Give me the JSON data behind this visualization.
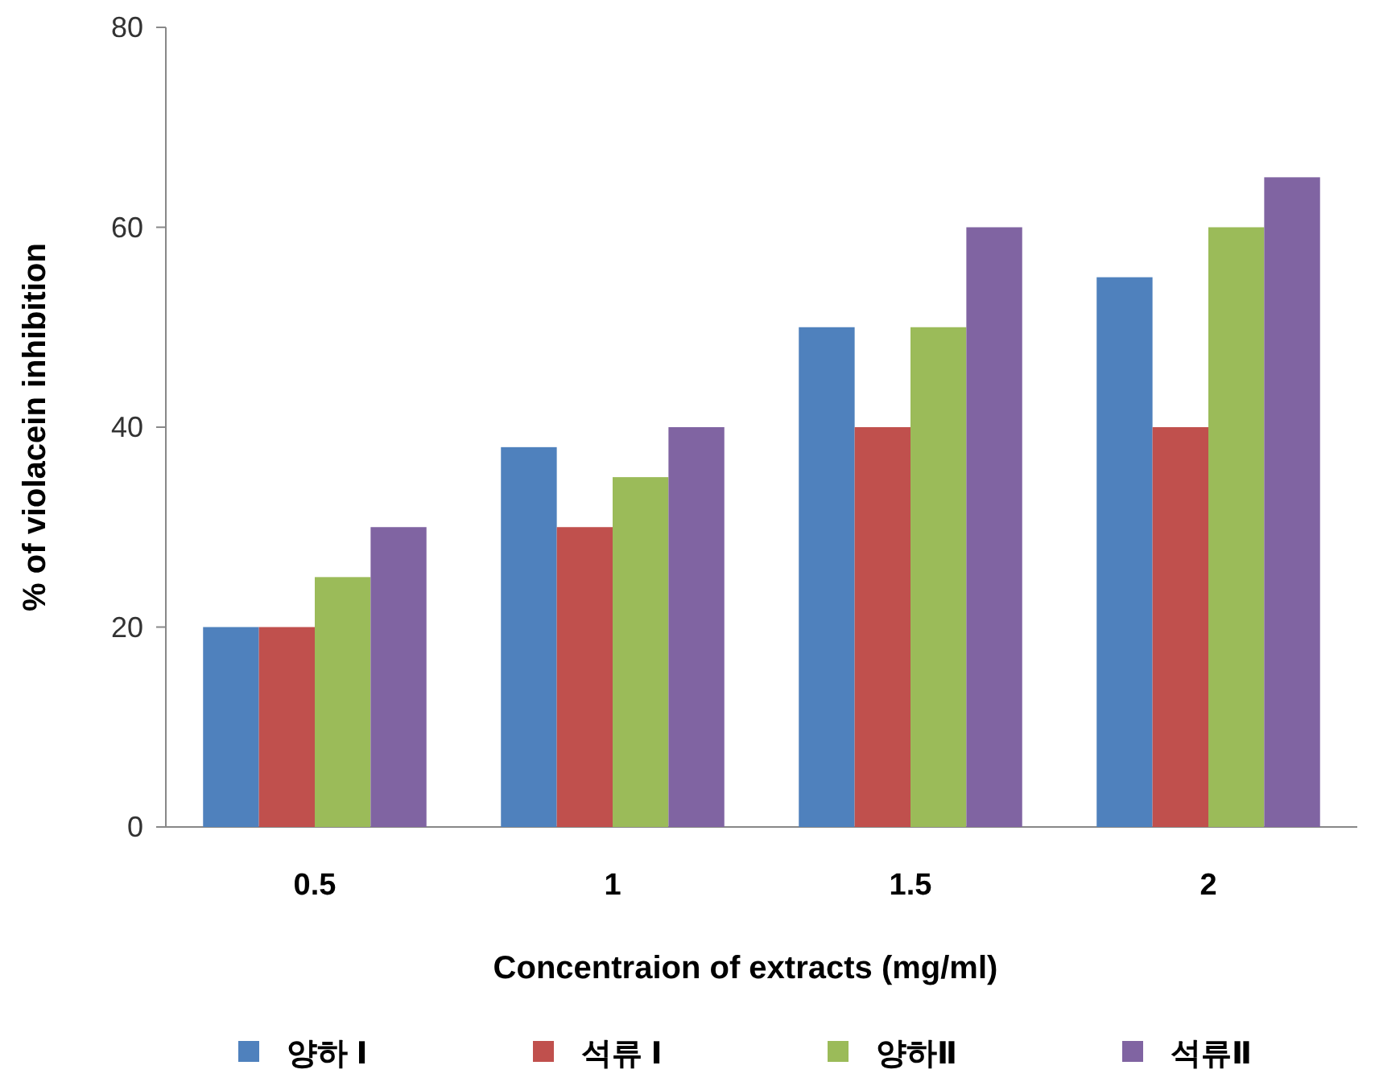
{
  "chart_data": {
    "type": "bar",
    "xlabel": "Concentraion of extracts (mg/ml)",
    "ylabel": "% of violacein inhibition",
    "categories": [
      "0.5",
      "1",
      "1.5",
      "2"
    ],
    "series": [
      {
        "name": "양하 Ⅰ",
        "color": "#4f81bd",
        "values": [
          20,
          38,
          50,
          55
        ]
      },
      {
        "name": "석류 Ⅰ",
        "color": "#c0504d",
        "values": [
          20,
          30,
          40,
          40
        ]
      },
      {
        "name": "양하Ⅱ",
        "color": "#9bbb59",
        "values": [
          25,
          35,
          50,
          60
        ]
      },
      {
        "name": "석류Ⅱ",
        "color": "#8064a2",
        "values": [
          30,
          40,
          60,
          65
        ]
      }
    ],
    "ylim": [
      0,
      80
    ],
    "yticks": [
      0,
      20,
      40,
      60,
      80
    ],
    "grid": false,
    "legend": "bottom"
  }
}
